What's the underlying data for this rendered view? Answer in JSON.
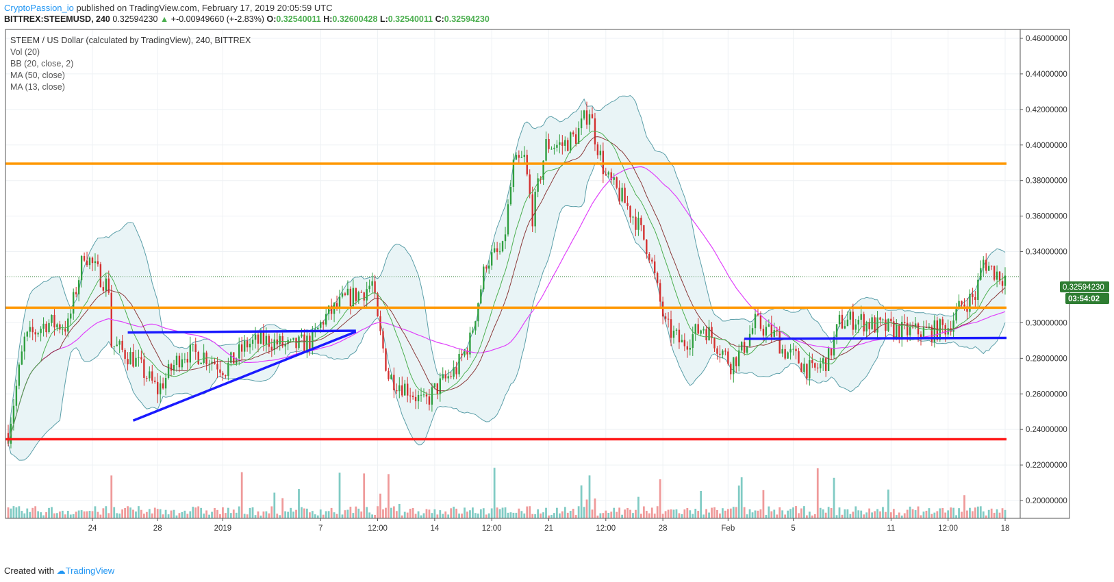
{
  "header": {
    "author": "CryptoPassion_io",
    "published_text": "published on TradingView.com, February 17, 2019 20:05:59 UTC",
    "symbol": "BITTREX:STEEMUSD, 240",
    "last": "0.32594230",
    "change": "+-0.00949660 (+-2.83%)",
    "o_label": "O:",
    "o_value": "0.32540011",
    "h_label": "H:",
    "h_value": "0.32600428",
    "l_label": "L:",
    "l_value": "0.32540011",
    "c_label": "C:",
    "c_value": "0.32594230"
  },
  "legend": {
    "title": "STEEM / US Dollar (calculated by TradingView), 240, BITTREX",
    "items": [
      "Vol (20)",
      "BB (20, close, 2)",
      "MA (50, close)",
      "MA (13, close)"
    ]
  },
  "footer": {
    "created_with": "Created with",
    "brand": "TradingView"
  },
  "price_badge": {
    "price": "0.32594230",
    "countdown": "03:54:02",
    "color": "#2e7d32"
  },
  "colors": {
    "up": "#2e9e3e",
    "down": "#d32f2f",
    "vol_up": "#80cbc4",
    "vol_down": "#ef9a9a",
    "bb": "#5a9ea8",
    "bb_fill": "#e9f4f6",
    "ma50": "#e040fb",
    "ma13": "#4caf50",
    "ma20": "#8b3a3a",
    "orange": "#ff9800",
    "red": "#ff1a1a",
    "blue": "#1a1aff"
  },
  "chart_data": {
    "type": "candlestick",
    "ylim": [
      0.19,
      0.465
    ],
    "y_ticks": [
      "0.46000000",
      "0.44000000",
      "0.42000000",
      "0.40000000",
      "0.38000000",
      "0.36000000",
      "0.34000000",
      "0.30000000",
      "0.28000000",
      "0.26000000",
      "0.24000000",
      "0.22000000",
      "0.20000000"
    ],
    "x_ticks": [
      {
        "label": "24",
        "i": 31
      },
      {
        "label": "28",
        "i": 55
      },
      {
        "label": "2019",
        "i": 79
      },
      {
        "label": "7",
        "i": 115
      },
      {
        "label": "12:00",
        "i": 136
      },
      {
        "label": "14",
        "i": 157
      },
      {
        "label": "12:00",
        "i": 178
      },
      {
        "label": "21",
        "i": 199
      },
      {
        "label": "12:00",
        "i": 220
      },
      {
        "label": "28",
        "i": 241
      },
      {
        "label": "Feb",
        "i": 265
      },
      {
        "label": "5",
        "i": 289
      },
      {
        "label": "11",
        "i": 325
      },
      {
        "label": "12:00",
        "i": 346
      },
      {
        "label": "18",
        "i": 367
      }
    ],
    "close_profile": [
      [
        0,
        0.238
      ],
      [
        6,
        0.29
      ],
      [
        14,
        0.3
      ],
      [
        22,
        0.298
      ],
      [
        28,
        0.34
      ],
      [
        32,
        0.33
      ],
      [
        37,
        0.32
      ],
      [
        38,
        0.288
      ],
      [
        46,
        0.28
      ],
      [
        55,
        0.262
      ],
      [
        64,
        0.283
      ],
      [
        72,
        0.282
      ],
      [
        80,
        0.274
      ],
      [
        88,
        0.288
      ],
      [
        96,
        0.29
      ],
      [
        104,
        0.286
      ],
      [
        112,
        0.29
      ],
      [
        116,
        0.302
      ],
      [
        124,
        0.313
      ],
      [
        131,
        0.318
      ],
      [
        134,
        0.322
      ],
      [
        136,
        0.3
      ],
      [
        138,
        0.285
      ],
      [
        140,
        0.27
      ],
      [
        148,
        0.262
      ],
      [
        153,
        0.254
      ],
      [
        157,
        0.262
      ],
      [
        165,
        0.274
      ],
      [
        170,
        0.29
      ],
      [
        176,
        0.335
      ],
      [
        182,
        0.34
      ],
      [
        186,
        0.388
      ],
      [
        190,
        0.392
      ],
      [
        193,
        0.36
      ],
      [
        198,
        0.4
      ],
      [
        204,
        0.4
      ],
      [
        209,
        0.405
      ],
      [
        214,
        0.42
      ],
      [
        216,
        0.405
      ],
      [
        220,
        0.382
      ],
      [
        226,
        0.37
      ],
      [
        231,
        0.358
      ],
      [
        236,
        0.34
      ],
      [
        239,
        0.318
      ],
      [
        242,
        0.298
      ],
      [
        248,
        0.288
      ],
      [
        256,
        0.298
      ],
      [
        261,
        0.288
      ],
      [
        266,
        0.277
      ],
      [
        270,
        0.284
      ],
      [
        275,
        0.3
      ],
      [
        279,
        0.296
      ],
      [
        283,
        0.292
      ],
      [
        285,
        0.285
      ],
      [
        290,
        0.28
      ],
      [
        296,
        0.272
      ],
      [
        302,
        0.28
      ],
      [
        306,
        0.3
      ],
      [
        312,
        0.302
      ],
      [
        320,
        0.298
      ],
      [
        330,
        0.295
      ],
      [
        340,
        0.295
      ],
      [
        346,
        0.298
      ],
      [
        351,
        0.31
      ],
      [
        356,
        0.315
      ],
      [
        359,
        0.335
      ],
      [
        362,
        0.33
      ],
      [
        366,
        0.326
      ]
    ],
    "count": 368,
    "annotations": [
      {
        "type": "hline",
        "y": 0.3895,
        "color": "orange",
        "x_from_i": 0,
        "x_to_i": 368
      },
      {
        "type": "hline",
        "y": 0.3085,
        "color": "orange",
        "x_from_i": 0,
        "x_to_i": 368
      },
      {
        "type": "hline",
        "y": 0.2345,
        "color": "red",
        "x_from_i": 0,
        "x_to_i": 368
      },
      {
        "type": "line",
        "i1": 44,
        "y1": 0.2945,
        "i2": 128,
        "y2": 0.2955,
        "color": "blue"
      },
      {
        "type": "line",
        "i1": 46,
        "y1": 0.245,
        "i2": 128,
        "y2": 0.295,
        "color": "blue"
      },
      {
        "type": "line",
        "i1": 271,
        "y1": 0.291,
        "i2": 368,
        "y2": 0.2915,
        "color": "blue"
      }
    ]
  }
}
